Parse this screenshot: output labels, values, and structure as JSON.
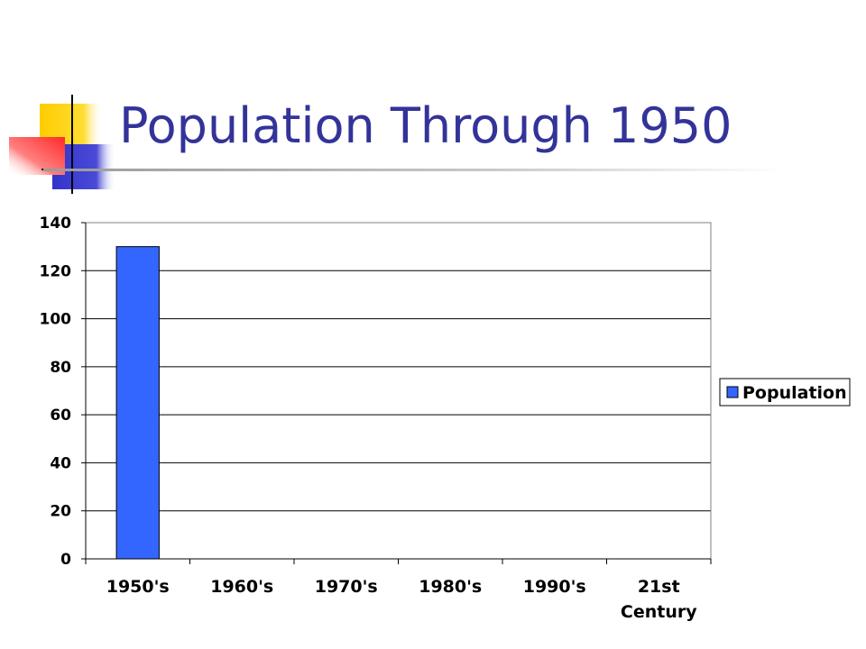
{
  "slide": {
    "title": "Population Through 1950"
  },
  "chart_data": {
    "type": "bar",
    "categories": [
      "1950's",
      "1960's",
      "1970's",
      "1980's",
      "1990's",
      "21st Century"
    ],
    "category_lines": [
      [
        "1950's"
      ],
      [
        "1960's"
      ],
      [
        "1970's"
      ],
      [
        "1980's"
      ],
      [
        "1990's"
      ],
      [
        "21st",
        "Century"
      ]
    ],
    "series": [
      {
        "name": "Population",
        "values": [
          130,
          0,
          0,
          0,
          0,
          0
        ]
      }
    ],
    "ylim": [
      0,
      140
    ],
    "yticks": [
      0,
      20,
      40,
      60,
      80,
      100,
      120,
      140
    ],
    "grid": true,
    "legend": "right",
    "colors": {
      "bar": "#3366ff",
      "grid": "#000000",
      "title": "#333399"
    }
  }
}
